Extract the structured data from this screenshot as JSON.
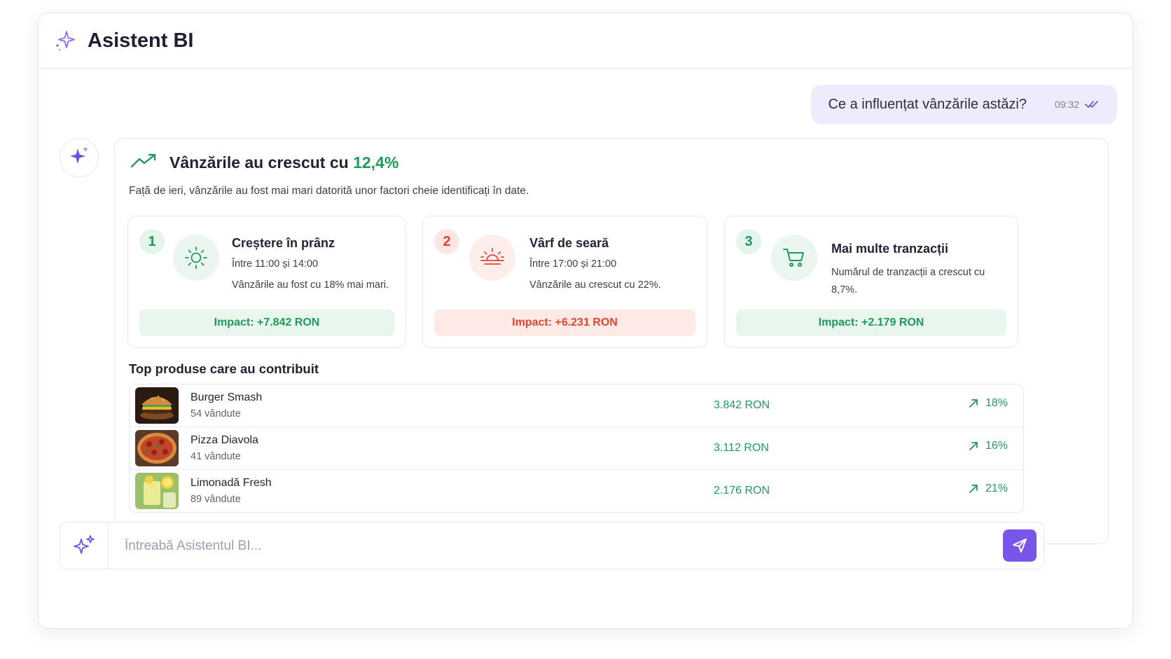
{
  "header": {
    "title": "Asistent BI",
    "logo_icon": "sparkle-icon"
  },
  "user_message": {
    "text": "Ce a influențat vânzările astăzi?",
    "time": "09:32",
    "status_icon": "double-check-icon"
  },
  "answer": {
    "headline_prefix": "Vânzările au crescut cu",
    "headline_value": "12,4%",
    "subtitle": "Față de ieri, vânzările au fost mai mari datorită unor factori cheie identificați în date.",
    "factors": [
      {
        "num": "1",
        "icon": "sun-icon",
        "title": "Creștere în prânz",
        "time": "Între 11:00 și 14:00",
        "desc": "Vânzările au fost cu 18% mai mari.",
        "impact": "Impact: +7.842 RON",
        "color": "#1f9a5c"
      },
      {
        "num": "2",
        "icon": "sunset-icon",
        "title": "Vârf de seară",
        "time": "Între 17:00 și 21:00",
        "desc": "Vânzările au crescut cu 22%.",
        "impact": "Impact: +6.231 RON",
        "color": "#e0452f"
      },
      {
        "num": "3",
        "icon": "cart-icon",
        "title": "Mai multe tranzacții",
        "desc": "Numărul de tranzacții a crescut cu 8,7%.",
        "impact": "Impact: +2.179 RON",
        "color": "#1f9a5c"
      }
    ],
    "products_title": "Top produse care au contribuit",
    "products": [
      {
        "name": "Burger Smash",
        "sold": "54 vândute",
        "revenue": "3.842 RON",
        "growth": "18%",
        "thumb": "burger-image"
      },
      {
        "name": "Pizza Diavola",
        "sold": "41 vândute",
        "revenue": "3.112 RON",
        "growth": "16%",
        "thumb": "pizza-image"
      },
      {
        "name": "Limonadă Fresh",
        "sold": "89 vândute",
        "revenue": "2.176 RON",
        "growth": "21%",
        "thumb": "lemonade-image"
      }
    ]
  },
  "composer": {
    "placeholder": "Întreabă Asistentul BI...",
    "send_icon": "send-icon"
  },
  "colors": {
    "accent": "#7a55ea",
    "positive": "#1f9a5c",
    "negative": "#e0452f",
    "user_bubble": "#eeecfb"
  }
}
